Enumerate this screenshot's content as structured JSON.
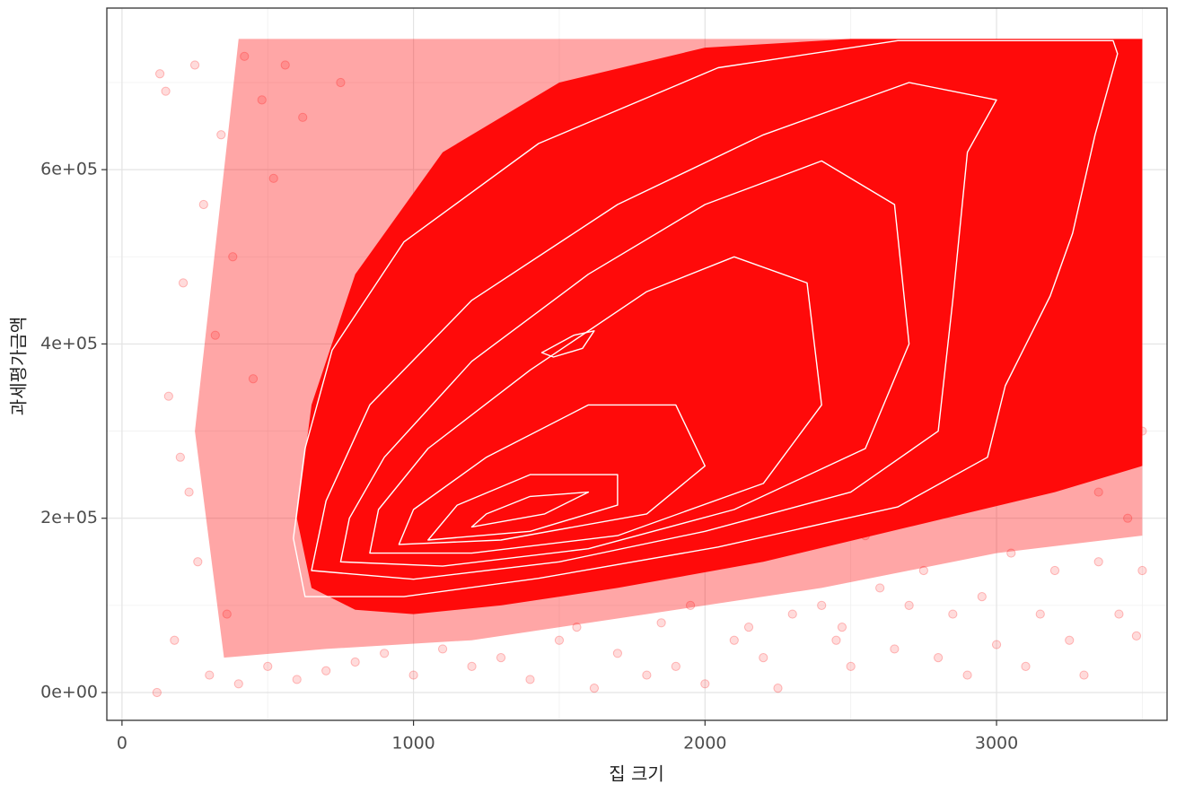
{
  "chart_data": {
    "type": "scatter",
    "x_label": "집 크기",
    "y_label": "과세평가금액",
    "xlim": [
      -52,
      3585
    ],
    "ylim": [
      -31900,
      785400
    ],
    "xticks": [
      0,
      1000,
      2000,
      3000
    ],
    "yticks": [
      {
        "value": 0,
        "label": "0e+00"
      },
      {
        "value": 200000,
        "label": "2e+05"
      },
      {
        "value": 400000,
        "label": "4e+05"
      },
      {
        "value": 600000,
        "label": "6e+05"
      }
    ],
    "x_minor_grid": [
      500,
      1500,
      2500,
      3500
    ],
    "y_minor_grid": [
      100000,
      300000,
      500000,
      700000
    ],
    "grid": true,
    "series": [
      {
        "color": "#ff0000",
        "x": [
          120,
          130,
          150,
          160,
          180,
          200,
          210,
          230,
          250,
          260,
          280,
          300,
          320,
          340,
          360,
          380,
          400,
          420,
          450,
          480,
          500,
          520,
          560,
          600,
          620,
          700,
          750,
          800,
          900,
          1000,
          1100,
          1200,
          1300,
          1400,
          1500,
          1560,
          1620,
          1700,
          1800,
          1850,
          1900,
          1950,
          2000,
          2100,
          2150,
          2200,
          2250,
          2300,
          2400,
          2450,
          2470,
          2500,
          2550,
          2600,
          2650,
          2700,
          2750,
          2800,
          2850,
          2900,
          2950,
          3000,
          3000,
          3050,
          3100,
          3150,
          3150,
          3200,
          3250,
          3300,
          3300,
          3350,
          3400,
          3420,
          3450,
          3480,
          3500,
          3500,
          3100,
          3350
        ],
        "values": [
          0,
          710000,
          690000,
          340000,
          60000,
          270000,
          470000,
          230000,
          720000,
          150000,
          560000,
          20000,
          410000,
          640000,
          90000,
          500000,
          10000,
          730000,
          360000,
          680000,
          30000,
          590000,
          720000,
          15000,
          660000,
          25000,
          700000,
          35000,
          45000,
          20000,
          50000,
          30000,
          40000,
          15000,
          60000,
          75000,
          5000,
          45000,
          20000,
          80000,
          30000,
          100000,
          10000,
          60000,
          75000,
          40000,
          5000,
          90000,
          100000,
          60000,
          75000,
          30000,
          180000,
          120000,
          50000,
          100000,
          140000,
          40000,
          90000,
          20000,
          110000,
          280000,
          55000,
          160000,
          30000,
          290000,
          90000,
          140000,
          60000,
          300000,
          20000,
          150000,
          310000,
          90000,
          200000,
          65000,
          300000,
          140000,
          250000,
          230000
        ]
      }
    ],
    "density_halo": {
      "x": [
        350,
        700,
        1200,
        1800,
        2400,
        3000,
        3500,
        3500,
        400,
        250
      ],
      "y": [
        40000,
        50000,
        60000,
        90000,
        120000,
        160000,
        180000,
        750000,
        750000,
        300000
      ]
    },
    "density_core": {
      "x": [
        650,
        800,
        1000,
        1300,
        1700,
        2200,
        2700,
        3200,
        3500,
        3500,
        3000,
        2500,
        2000,
        1500,
        1100,
        800,
        650,
        600
      ],
      "y": [
        120000,
        95000,
        90000,
        100000,
        120000,
        150000,
        190000,
        230000,
        260000,
        750000,
        750000,
        750000,
        740000,
        700000,
        620000,
        480000,
        330000,
        200000
      ]
    },
    "contours": [
      {
        "x": [
          628,
          967,
          1429,
          2045,
          2661,
          2969,
          3030,
          3184,
          3261,
          3338,
          3415,
          3400,
          2661,
          2045,
          1429,
          967,
          721,
          628,
          588
        ],
        "y": [
          110000,
          110000,
          131000,
          167000,
          213000,
          270000,
          352000,
          455000,
          527000,
          640000,
          733000,
          748000,
          748000,
          717000,
          630000,
          517000,
          393000,
          280000,
          177000
        ]
      },
      {
        "x": [
          650,
          1000,
          1500,
          2000,
          2500,
          2800,
          2850,
          2900,
          3000,
          2700,
          2200,
          1700,
          1200,
          850,
          700
        ],
        "y": [
          140000,
          130000,
          150000,
          185000,
          230000,
          300000,
          450000,
          620000,
          680000,
          700000,
          640000,
          560000,
          450000,
          330000,
          220000
        ]
      },
      {
        "x": [
          750,
          1100,
          1600,
          2100,
          2550,
          2700,
          2650,
          2400,
          2000,
          1600,
          1200,
          900,
          780
        ],
        "y": [
          150000,
          145000,
          165000,
          210000,
          280000,
          400000,
          560000,
          610000,
          560000,
          480000,
          380000,
          270000,
          200000
        ]
      },
      {
        "x": [
          850,
          1200,
          1700,
          2200,
          2400,
          2350,
          2100,
          1800,
          1400,
          1050,
          880
        ],
        "y": [
          160000,
          160000,
          180000,
          240000,
          330000,
          470000,
          500000,
          460000,
          370000,
          280000,
          210000
        ]
      },
      {
        "x": [
          950,
          1300,
          1800,
          2000,
          1900,
          1600,
          1250,
          1000
        ],
        "y": [
          170000,
          175000,
          205000,
          260000,
          330000,
          330000,
          270000,
          210000
        ]
      },
      {
        "x": [
          1050,
          1400,
          1700,
          1700,
          1400,
          1150
        ],
        "y": [
          175000,
          185000,
          215000,
          250000,
          250000,
          215000
        ]
      },
      {
        "x": [
          1200,
          1450,
          1600,
          1400,
          1250
        ],
        "y": [
          190000,
          205000,
          230000,
          225000,
          205000
        ]
      },
      {
        "x": [
          1440,
          1550,
          1620,
          1580,
          1480
        ],
        "y": [
          390000,
          410000,
          415000,
          395000,
          385000
        ]
      }
    ]
  }
}
